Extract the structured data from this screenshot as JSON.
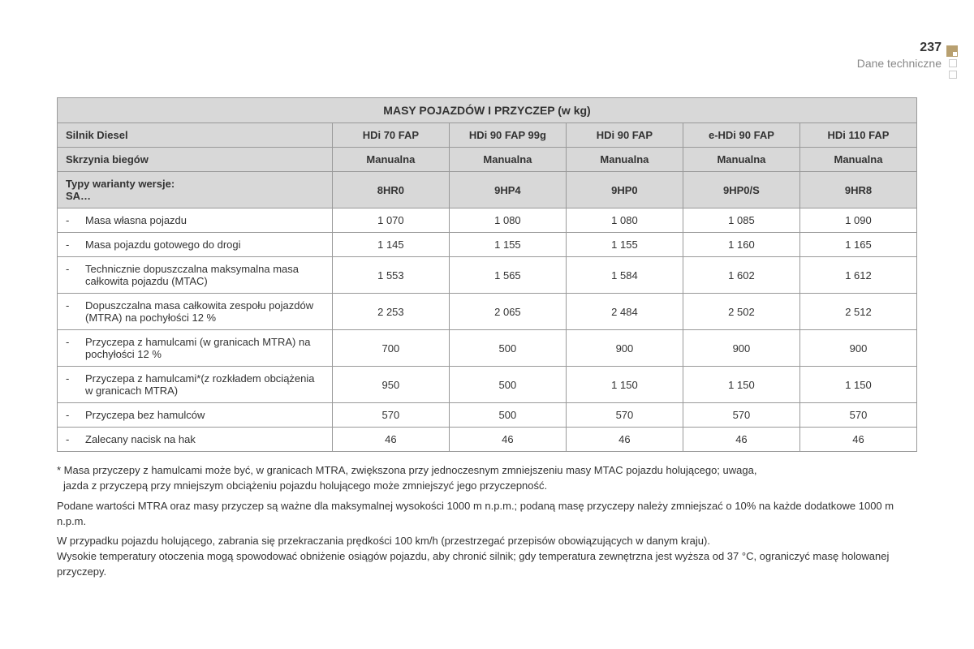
{
  "header": {
    "page_number": "237",
    "section": "Dane techniczne"
  },
  "decoration": {
    "accent_color": "#b8a070"
  },
  "table": {
    "title": "MASY POJAZDÓW I PRZYCZEP (w kg)",
    "header_rows": [
      {
        "label": "Silnik Diesel",
        "values": [
          "HDi 70 FAP",
          "HDi 90 FAP 99g",
          "HDi 90 FAP",
          "e-HDi 90 FAP",
          "HDi 110 FAP"
        ]
      },
      {
        "label": "Skrzynia biegów",
        "values": [
          "Manualna",
          "Manualna",
          "Manualna",
          "Manualna",
          "Manualna"
        ]
      },
      {
        "label": "Typy warianty wersje:\nSA…",
        "values": [
          "8HR0",
          "9HP4",
          "9HP0",
          "9HP0/S",
          "9HR8"
        ]
      }
    ],
    "data_rows": [
      {
        "label": "Masa własna pojazdu",
        "values": [
          "1 070",
          "1 080",
          "1 080",
          "1 085",
          "1 090"
        ]
      },
      {
        "label": "Masa pojazdu gotowego do drogi",
        "values": [
          "1 145",
          "1 155",
          "1 155",
          "1 160",
          "1 165"
        ]
      },
      {
        "label": "Technicznie dopuszczalna maksymalna masa całkowita pojazdu (MTAC)",
        "values": [
          "1 553",
          "1 565",
          "1 584",
          "1 602",
          "1 612"
        ]
      },
      {
        "label": "Dopuszczalna masa całkowita zespołu pojazdów (MTRA) na pochyłości 12 %",
        "values": [
          "2 253",
          "2 065",
          "2 484",
          "2 502",
          "2 512"
        ]
      },
      {
        "label": "Przyczepa z hamulcami (w granicach MTRA) na pochyłości 12 %",
        "values": [
          "700",
          "500",
          "900",
          "900",
          "900"
        ]
      },
      {
        "label": "Przyczepa z hamulcami*(z rozkładem obciążenia w granicach MTRA)",
        "values": [
          "950",
          "500",
          "1 150",
          "1 150",
          "1 150"
        ]
      },
      {
        "label": "Przyczepa bez hamulców",
        "values": [
          "570",
          "500",
          "570",
          "570",
          "570"
        ]
      },
      {
        "label": "Zalecany nacisk na hak",
        "values": [
          "46",
          "46",
          "46",
          "46",
          "46"
        ]
      }
    ],
    "column_widths": {
      "label": "32%",
      "value": "13.6%"
    }
  },
  "footnotes": {
    "note1_line1": "* Masa przyczepy z hamulcami może być, w granicach MTRA, zwiększona przy jednoczesnym zmniejszeniu masy MTAC pojazdu holującego; uwaga,",
    "note1_line2": "jazda z przyczepą przy mniejszym obciążeniu pojazdu holującego może zmniejszyć jego przyczepność.",
    "note2": "Podane wartości MTRA oraz masy przyczep są ważne dla maksymalnej wysokości 1000 m n.p.m.; podaną masę przyczepy należy zmniejszać o 10% na każde dodatkowe 1000 m n.p.m.",
    "note3": "W przypadku pojazdu holującego, zabrania się przekraczania prędkości 100 km/h (przestrzegać przepisów obowiązujących w danym kraju).",
    "note4": "Wysokie temperatury otoczenia mogą spowodować obniżenie osiągów pojazdu, aby chronić silnik; gdy temperatura zewnętrzna jest wyższa od 37 °C, ograniczyć masę holowanej przyczepy."
  }
}
